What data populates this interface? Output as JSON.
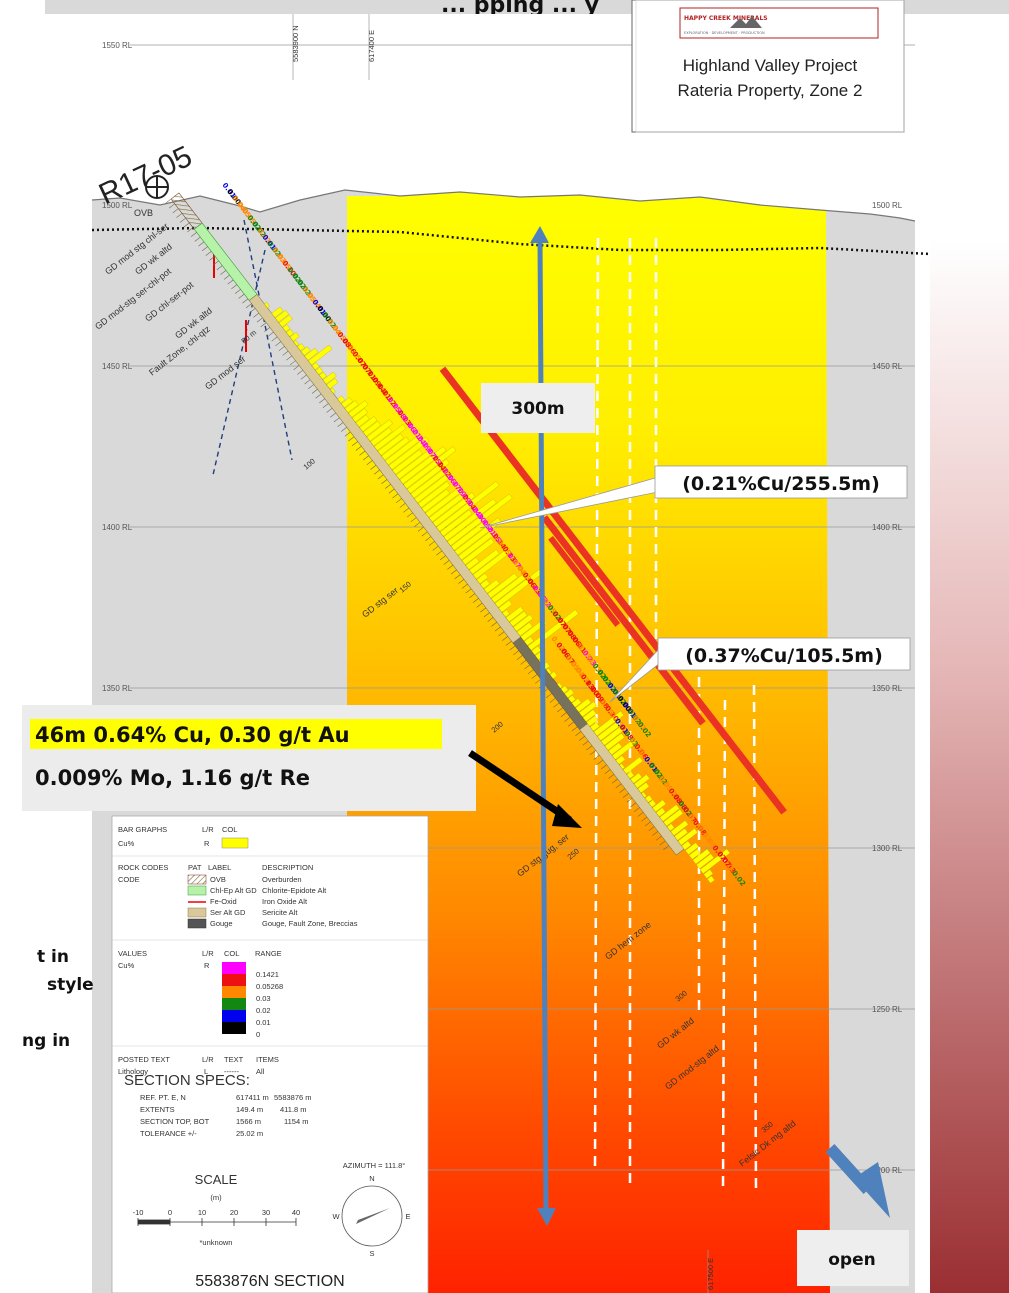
{
  "title": "... pping ... y",
  "colors": {
    "surface_gray": "#d9d9d9",
    "zone_yellow": "#ffff00",
    "zone_orange": "#ff9900",
    "zone_red": "#ff2a00",
    "background_red": "#a3393c",
    "arrow_blue": "#4f81bd",
    "interval_red": "#ea3323",
    "highlight_yellow": "#ffff00"
  },
  "logo": {
    "brand": "HAPPY CREEK MINERALS",
    "subtitle": "EXPLORATION · DEVELOPMENT · PRODUCTION"
  },
  "project_box": {
    "line1": "Highland Valley Project",
    "line2": "Rateria Property, Zone 2"
  },
  "drillhole": {
    "id": "R17-05"
  },
  "top_labels": {
    "northing": "5583900 N",
    "easting": "617400 E",
    "easting_bottom": "617500 E"
  },
  "elevations": [
    "1550 RL",
    "1500 RL",
    "1450 RL",
    "1400 RL",
    "1350 RL",
    "1300 RL",
    "1250 RL",
    "1200 RL"
  ],
  "lithology_labels": [
    "OVB",
    "GD mod stg chl-ser",
    "GD wk altd",
    "GD mod-stg ser-chl-pot",
    "GD chl-ser-pot",
    "GD wk altd",
    "Fault Zone, chl-qtz",
    "GD mod ser",
    "GD stg ser",
    "GD stg gug, ser",
    "GD hem zone",
    "GD wk altd",
    "GD mod-stg altd",
    "Felsic Dk mg altd"
  ],
  "depth_marks": [
    "50 m",
    "100",
    "150",
    "200",
    "250",
    "300",
    "350"
  ],
  "assays_upper": [
    "0.01",
    "0.00",
    "0.04",
    "0.05",
    "0.05",
    "0.02",
    "0.02",
    "0.03",
    "0.01",
    "0.02",
    "0.03",
    "0.05",
    "0.10",
    "0.02",
    "0.02",
    "0.02",
    "0.05",
    "0.04",
    "0.01",
    "0.00",
    "0.02",
    "0.04",
    "0.05",
    "0.08",
    "0.06",
    "0.05",
    "0.07",
    "0.07",
    "0.11",
    "0.09",
    "0.14",
    "0.11",
    "0.12",
    "0.15",
    "0.18",
    "0.13",
    "0.16",
    "0.21",
    "0.24",
    "0.19",
    "0.17",
    "0.15",
    "0.14",
    "0.12",
    "0.16",
    "0.17",
    "0.19",
    "0.29",
    "0.14",
    "0.24",
    "0.30",
    "0.15",
    "0.21",
    "0.15",
    "0.14",
    "0.05",
    "0.13",
    "0.17",
    "0.04",
    "0.03",
    "0.06",
    "0.13",
    "0.15",
    "0.22",
    "0.05",
    "0.02",
    "0.07",
    "0.07",
    "0.08",
    "0.06",
    "0.11",
    "0.03",
    "0.23",
    "0.03",
    "0.02",
    "0.02",
    "0.02",
    "0.01",
    "0.02",
    "0.00",
    "0.01",
    "0.02",
    "0.03",
    "0.02"
  ],
  "assays_lower": [
    "0.03",
    "0.06",
    "0.07",
    "0.05",
    "0.04",
    "0.03",
    "0.13",
    "0.10",
    "0.09",
    "0.08",
    "0.05",
    "0.10",
    "0.03",
    "0.01",
    "0.08",
    "0.02",
    "0.04",
    "0.06",
    "0.04",
    "0.01",
    "0.02",
    "0.02",
    "0.05",
    "0.03",
    "0.08",
    "0.08",
    "0.02",
    "0.07",
    "0.05",
    "0.08",
    "0.03",
    "0.05",
    "0.04",
    "0.07",
    "0.07",
    "0.13",
    "0.03",
    "0.02"
  ],
  "labels": {
    "interval_300m": "300m",
    "interval_long": "(0.21%Cu/255.5m)",
    "interval_short": "(0.37%Cu/105.5m)",
    "highlight_line1": "46m 0.64% Cu, 0.30 g/t Au",
    "highlight_line2": "0.009% Mo, 1.16 g/t Re",
    "open": "open"
  },
  "side_text": {
    "line1": "t   in",
    "line2": "style",
    "line3": "ng in"
  },
  "legend": {
    "bar_graphs": {
      "title": "BAR GRAPHS",
      "lr": "L/R",
      "col": "COL",
      "item": "Cu%",
      "side": "R"
    },
    "rock_codes": {
      "title": "ROCK CODES",
      "code": "CODE",
      "pat": "PAT",
      "label": "LABEL",
      "description": "DESCRIPTION",
      "items": [
        {
          "label": "OVB",
          "description": "Overburden"
        },
        {
          "label": "Chl-Ep Alt GD",
          "description": "Chlorite-Epidote Alt"
        },
        {
          "label": "Fe-Oxid",
          "description": "Iron Oxide Alt"
        },
        {
          "label": "Ser Alt GD",
          "description": "Sericite Alt"
        },
        {
          "label": "Gouge",
          "description": "Gouge, Fault Zone, Breccias"
        }
      ]
    },
    "values": {
      "title": "VALUES",
      "lr": "L/R",
      "col": "COL",
      "range": "RANGE",
      "item": "Cu%",
      "side": "R",
      "ranges": [
        "0.1421",
        "0.05268",
        "0.03",
        "0.02",
        "0.01",
        "0"
      ]
    },
    "posted": {
      "title": "POSTED TEXT",
      "lr": "L/R",
      "text": "TEXT",
      "items": "ITEMS",
      "item": "Lithology",
      "side": "L",
      "dash": "------",
      "all": "All"
    },
    "specs": {
      "title": "SECTION  SPECS:",
      "rows": [
        {
          "k": "REF. PT. E, N",
          "v1": "617411 m",
          "v2": "5583876 m"
        },
        {
          "k": "EXTENTS",
          "v1": "149.4 m",
          "v2": "411.8 m"
        },
        {
          "k": "SECTION TOP, BOT",
          "v1": "1566 m",
          "v2": "1154 m"
        },
        {
          "k": "TOLERANCE +/-",
          "v1": "25.02 m",
          "v2": ""
        }
      ]
    },
    "scale": {
      "title": "SCALE",
      "unit": "(m)",
      "ticks": [
        "-10",
        "0",
        "10",
        "20",
        "30",
        "40"
      ],
      "note": "*unknown"
    },
    "azimuth": {
      "label": "AZIMUTH = 111.8°",
      "n": "N",
      "s": "S",
      "e": "E",
      "w": "W"
    },
    "section_name": "5583876N  SECTION"
  }
}
